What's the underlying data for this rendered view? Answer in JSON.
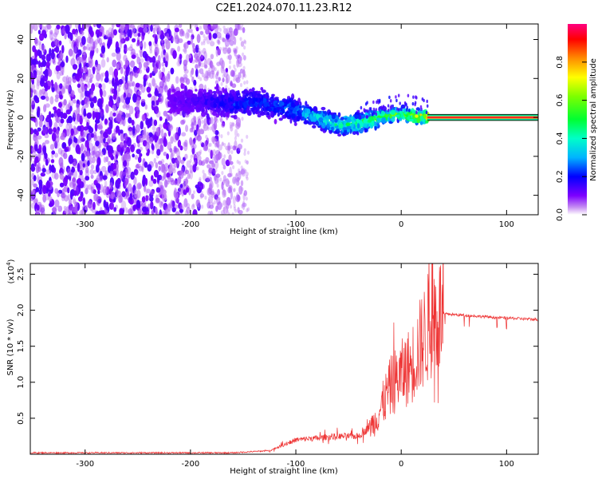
{
  "title": "C2E1.2024.070.11.23.R12",
  "chart_data": [
    {
      "type": "heatmap",
      "xlabel": "Height of straight line (km)",
      "ylabel": "Frequency (Hz)",
      "xlim": [
        -352,
        130
      ],
      "ylim": [
        -50,
        48
      ],
      "xticks": [
        -300,
        -200,
        -100,
        0,
        100
      ],
      "yticks": [
        -40,
        -20,
        0,
        20,
        40
      ],
      "grid": false,
      "colorbar": {
        "label": "Normalized spectral amplitude",
        "range": [
          0,
          1
        ],
        "ticks": [
          0.0,
          0.2,
          0.4,
          0.6,
          0.8
        ],
        "colormap": "rainbow"
      },
      "trace": [
        {
          "x": -220,
          "f": 9,
          "amp": 0.12
        },
        {
          "x": -200,
          "f": 8,
          "amp": 0.14
        },
        {
          "x": -180,
          "f": 8,
          "amp": 0.18
        },
        {
          "x": -160,
          "f": 7,
          "amp": 0.22
        },
        {
          "x": -140,
          "f": 8,
          "amp": 0.25
        },
        {
          "x": -120,
          "f": 6,
          "amp": 0.25
        },
        {
          "x": -100,
          "f": 4,
          "amp": 0.3
        },
        {
          "x": -80,
          "f": 0,
          "amp": 0.38
        },
        {
          "x": -60,
          "f": -4,
          "amp": 0.45
        },
        {
          "x": -40,
          "f": -3,
          "amp": 0.5
        },
        {
          "x": -20,
          "f": 0,
          "amp": 0.55
        },
        {
          "x": 0,
          "f": 2,
          "amp": 0.6
        },
        {
          "x": 20,
          "f": 0,
          "amp": 0.75
        },
        {
          "x": 25,
          "f": 0,
          "amp": 0.9
        }
      ],
      "carrier": {
        "f": 0,
        "x_start": 25,
        "x_end": 130,
        "amp": 0.9
      }
    },
    {
      "type": "line",
      "xlabel": "Height of straight line (km)",
      "ylabel": "SNR (10 * v/v)",
      "y_multiplier": "(x10",
      "y_multiplier_exp": "4",
      "xlim": [
        -352,
        130
      ],
      "ylim": [
        0,
        2.65
      ],
      "xticks": [
        -300,
        -200,
        -100,
        0,
        100
      ],
      "yticks": [
        0.5,
        1.0,
        1.5,
        2.0,
        2.5
      ],
      "grid": false,
      "series": [
        {
          "color": "#ee3333",
          "profile": [
            {
              "x": -352,
              "y": 0.02
            },
            {
              "x": -160,
              "y": 0.02
            },
            {
              "x": -125,
              "y": 0.05
            },
            {
              "x": -100,
              "y": 0.2
            },
            {
              "x": -60,
              "y": 0.25
            },
            {
              "x": -40,
              "y": 0.25
            },
            {
              "x": -25,
              "y": 0.45
            },
            {
              "x": -10,
              "y": 0.95
            },
            {
              "x": 10,
              "y": 1.25
            },
            {
              "x": 30,
              "y": 1.9
            },
            {
              "x": 40,
              "y": 1.95
            },
            {
              "x": 60,
              "y": 1.93
            },
            {
              "x": 90,
              "y": 1.9
            },
            {
              "x": 130,
              "y": 1.87
            }
          ]
        }
      ]
    }
  ]
}
